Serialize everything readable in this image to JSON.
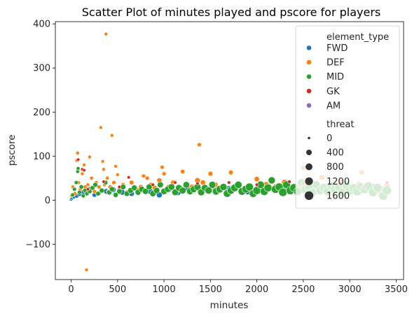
{
  "chart_data": {
    "type": "scatter",
    "title": "Scatter Plot of minutes played and pscore for players",
    "xlabel": "minutes",
    "ylabel": "pscore",
    "xlim": [
      -170,
      3580
    ],
    "ylim": [
      -180,
      405
    ],
    "xticks": [
      0,
      500,
      1000,
      1500,
      2000,
      2500,
      3000,
      3500
    ],
    "yticks": [
      -100,
      0,
      100,
      200,
      300,
      400
    ],
    "ytick_labels": [
      "−100",
      "0",
      "100",
      "200",
      "300",
      "400"
    ],
    "grid": false,
    "legend": {
      "placement": "top-right",
      "hue_title": "element_type",
      "hue_entries": [
        {
          "label": "FWD",
          "color": "#1f77b4"
        },
        {
          "label": "DEF",
          "color": "#ff7f0e"
        },
        {
          "label": "MID",
          "color": "#2ca02c"
        },
        {
          "label": "GK",
          "color": "#d62728"
        },
        {
          "label": "AM",
          "color": "#9467bd"
        }
      ],
      "size_title": "threat",
      "size_entries": [
        {
          "label": "0",
          "value": 0
        },
        {
          "label": "400",
          "value": 400
        },
        {
          "label": "800",
          "value": 800
        },
        {
          "label": "1200",
          "value": 1200
        },
        {
          "label": "1600",
          "value": 1600
        }
      ]
    },
    "series": [
      {
        "name": "FWD",
        "color": "#1f77b4",
        "points": [
          [
            0,
            2,
            20
          ],
          [
            10,
            5,
            60
          ],
          [
            30,
            8,
            120
          ],
          [
            60,
            10,
            150
          ],
          [
            90,
            14,
            200
          ],
          [
            130,
            18,
            250
          ],
          [
            160,
            22,
            300
          ],
          [
            200,
            25,
            260
          ],
          [
            250,
            12,
            180
          ],
          [
            300,
            16,
            220
          ],
          [
            380,
            20,
            400
          ],
          [
            450,
            24,
            500
          ],
          [
            550,
            18,
            420
          ],
          [
            650,
            15,
            380
          ],
          [
            720,
            22,
            600
          ],
          [
            850,
            20,
            550
          ],
          [
            950,
            12,
            480
          ],
          [
            1050,
            25,
            700
          ],
          [
            1150,
            18,
            650
          ],
          [
            1250,
            28,
            800
          ],
          [
            1400,
            22,
            750
          ],
          [
            1550,
            30,
            900
          ],
          [
            1700,
            25,
            850
          ],
          [
            1900,
            20,
            700
          ],
          [
            2100,
            28,
            1000
          ],
          [
            2300,
            22,
            950
          ],
          [
            2500,
            30,
            1100
          ],
          [
            2700,
            25,
            1200
          ],
          [
            2900,
            32,
            1300
          ],
          [
            3100,
            20,
            1100
          ],
          [
            3250,
            28,
            1400
          ],
          [
            3380,
            24,
            1500
          ]
        ]
      },
      {
        "name": "DEF",
        "color": "#ff7f0e",
        "points": [
          [
            5,
            10,
            40
          ],
          [
            20,
            30,
            60
          ],
          [
            40,
            15,
            80
          ],
          [
            60,
            90,
            40
          ],
          [
            70,
            107,
            60
          ],
          [
            80,
            40,
            60
          ],
          [
            100,
            25,
            100
          ],
          [
            120,
            60,
            40
          ],
          [
            140,
            80,
            40
          ],
          [
            150,
            30,
            80
          ],
          [
            165,
            -158,
            40
          ],
          [
            180,
            35,
            60
          ],
          [
            200,
            98,
            40
          ],
          [
            220,
            50,
            60
          ],
          [
            250,
            20,
            100
          ],
          [
            270,
            40,
            80
          ],
          [
            300,
            30,
            100
          ],
          [
            320,
            165,
            40
          ],
          [
            340,
            88,
            40
          ],
          [
            350,
            70,
            40
          ],
          [
            360,
            35,
            60
          ],
          [
            375,
            377,
            40
          ],
          [
            390,
            50,
            60
          ],
          [
            400,
            20,
            80
          ],
          [
            420,
            30,
            120
          ],
          [
            440,
            147,
            40
          ],
          [
            460,
            40,
            100
          ],
          [
            480,
            77,
            40
          ],
          [
            500,
            58,
            40
          ],
          [
            520,
            25,
            140
          ],
          [
            560,
            35,
            160
          ],
          [
            600,
            18,
            150
          ],
          [
            650,
            40,
            200
          ],
          [
            700,
            25,
            200
          ],
          [
            750,
            30,
            220
          ],
          [
            780,
            55,
            100
          ],
          [
            820,
            50,
            100
          ],
          [
            860,
            35,
            240
          ],
          [
            900,
            28,
            260
          ],
          [
            950,
            45,
            250
          ],
          [
            980,
            75,
            100
          ],
          [
            1000,
            60,
            100
          ],
          [
            1050,
            30,
            300
          ],
          [
            1100,
            40,
            280
          ],
          [
            1150,
            25,
            300
          ],
          [
            1200,
            65,
            150
          ],
          [
            1250,
            35,
            350
          ],
          [
            1300,
            30,
            320
          ],
          [
            1360,
            45,
            350
          ],
          [
            1380,
            126,
            100
          ],
          [
            1420,
            40,
            300
          ],
          [
            1500,
            60,
            200
          ],
          [
            1550,
            35,
            400
          ],
          [
            1650,
            30,
            450
          ],
          [
            1720,
            63,
            200
          ],
          [
            1800,
            35,
            400
          ],
          [
            1900,
            30,
            500
          ],
          [
            2000,
            48,
            300
          ],
          [
            2100,
            35,
            550
          ],
          [
            2200,
            30,
            500
          ],
          [
            2300,
            40,
            600
          ],
          [
            2450,
            30,
            650
          ],
          [
            2500,
            73,
            300
          ],
          [
            2600,
            35,
            700
          ],
          [
            2700,
            52,
            400
          ],
          [
            2800,
            30,
            750
          ],
          [
            2900,
            40,
            700
          ],
          [
            3000,
            25,
            800
          ],
          [
            3100,
            35,
            900
          ],
          [
            3130,
            63,
            300
          ],
          [
            3200,
            30,
            800
          ],
          [
            3300,
            22,
            850
          ],
          [
            3400,
            30,
            900
          ]
        ]
      },
      {
        "name": "MID",
        "color": "#2ca02c",
        "points": [
          [
            15,
            12,
            80
          ],
          [
            35,
            25,
            100
          ],
          [
            55,
            40,
            80
          ],
          [
            70,
            65,
            60
          ],
          [
            75,
            72,
            60
          ],
          [
            90,
            18,
            120
          ],
          [
            110,
            30,
            150
          ],
          [
            130,
            10,
            100
          ],
          [
            150,
            22,
            160
          ],
          [
            170,
            15,
            140
          ],
          [
            200,
            20,
            180
          ],
          [
            230,
            28,
            200
          ],
          [
            260,
            35,
            220
          ],
          [
            290,
            15,
            200
          ],
          [
            330,
            22,
            250
          ],
          [
            370,
            40,
            200
          ],
          [
            410,
            18,
            300
          ],
          [
            440,
            25,
            320
          ],
          [
            480,
            12,
            280
          ],
          [
            520,
            20,
            350
          ],
          [
            560,
            30,
            380
          ],
          [
            600,
            15,
            400
          ],
          [
            640,
            22,
            450
          ],
          [
            680,
            28,
            420
          ],
          [
            720,
            18,
            480
          ],
          [
            760,
            25,
            500
          ],
          [
            800,
            20,
            550
          ],
          [
            840,
            30,
            520
          ],
          [
            880,
            15,
            580
          ],
          [
            920,
            22,
            600
          ],
          [
            960,
            35,
            550
          ],
          [
            1000,
            20,
            650
          ],
          [
            1040,
            25,
            620
          ],
          [
            1080,
            30,
            680
          ],
          [
            1120,
            18,
            700
          ],
          [
            1160,
            28,
            720
          ],
          [
            1200,
            22,
            750
          ],
          [
            1240,
            35,
            700
          ],
          [
            1280,
            20,
            780
          ],
          [
            1320,
            25,
            800
          ],
          [
            1360,
            30,
            820
          ],
          [
            1400,
            18,
            850
          ],
          [
            1440,
            28,
            800
          ],
          [
            1480,
            22,
            900
          ],
          [
            1520,
            35,
            850
          ],
          [
            1560,
            20,
            950
          ],
          [
            1600,
            25,
            1000
          ],
          [
            1640,
            30,
            900
          ],
          [
            1680,
            15,
            1050
          ],
          [
            1720,
            22,
            1000
          ],
          [
            1760,
            28,
            1100
          ],
          [
            1800,
            35,
            950
          ],
          [
            1840,
            20,
            1150
          ],
          [
            1880,
            25,
            1100
          ],
          [
            1920,
            30,
            1200
          ],
          [
            1960,
            15,
            1100
          ],
          [
            2000,
            22,
            1250
          ],
          [
            2040,
            35,
            1050
          ],
          [
            2080,
            20,
            1300
          ],
          [
            2120,
            28,
            1200
          ],
          [
            2160,
            45,
            900
          ],
          [
            2200,
            25,
            1300
          ],
          [
            2240,
            30,
            1250
          ],
          [
            2280,
            18,
            1400
          ],
          [
            2320,
            35,
            1200
          ],
          [
            2360,
            22,
            1350
          ],
          [
            2400,
            28,
            1400
          ],
          [
            2440,
            20,
            1300
          ],
          [
            2480,
            40,
            1100
          ],
          [
            2520,
            25,
            1450
          ],
          [
            2560,
            30,
            1400
          ],
          [
            2600,
            18,
            1500
          ],
          [
            2640,
            35,
            1300
          ],
          [
            2680,
            22,
            1450
          ],
          [
            2720,
            28,
            1550
          ],
          [
            2760,
            20,
            1400
          ],
          [
            2800,
            32,
            1500
          ],
          [
            2840,
            25,
            1600
          ],
          [
            2880,
            30,
            1450
          ],
          [
            2920,
            18,
            1650
          ],
          [
            2960,
            35,
            1500
          ],
          [
            3000,
            22,
            1600
          ],
          [
            3040,
            28,
            1550
          ],
          [
            3080,
            20,
            1700
          ],
          [
            3120,
            30,
            1600
          ],
          [
            3160,
            25,
            1650
          ],
          [
            3200,
            32,
            1600
          ],
          [
            3250,
            18,
            1700
          ],
          [
            3300,
            28,
            1650
          ],
          [
            3360,
            10,
            1750
          ],
          [
            3400,
            22,
            1700
          ]
        ]
      },
      {
        "name": "GK",
        "color": "#d62728",
        "points": [
          [
            75,
            92,
            20
          ],
          [
            120,
            70,
            20
          ],
          [
            140,
            68,
            20
          ],
          [
            180,
            25,
            30
          ],
          [
            350,
            42,
            20
          ],
          [
            520,
            30,
            30
          ],
          [
            620,
            52,
            20
          ],
          [
            880,
            35,
            30
          ],
          [
            1120,
            40,
            30
          ],
          [
            1360,
            38,
            30
          ],
          [
            1700,
            40,
            30
          ],
          [
            2000,
            35,
            30
          ],
          [
            2350,
            42,
            30
          ],
          [
            2500,
            38,
            30
          ],
          [
            2900,
            35,
            30
          ],
          [
            3150,
            30,
            30
          ],
          [
            3400,
            40,
            30
          ]
        ]
      },
      {
        "name": "AM",
        "color": "#9467bd",
        "points": []
      }
    ]
  }
}
